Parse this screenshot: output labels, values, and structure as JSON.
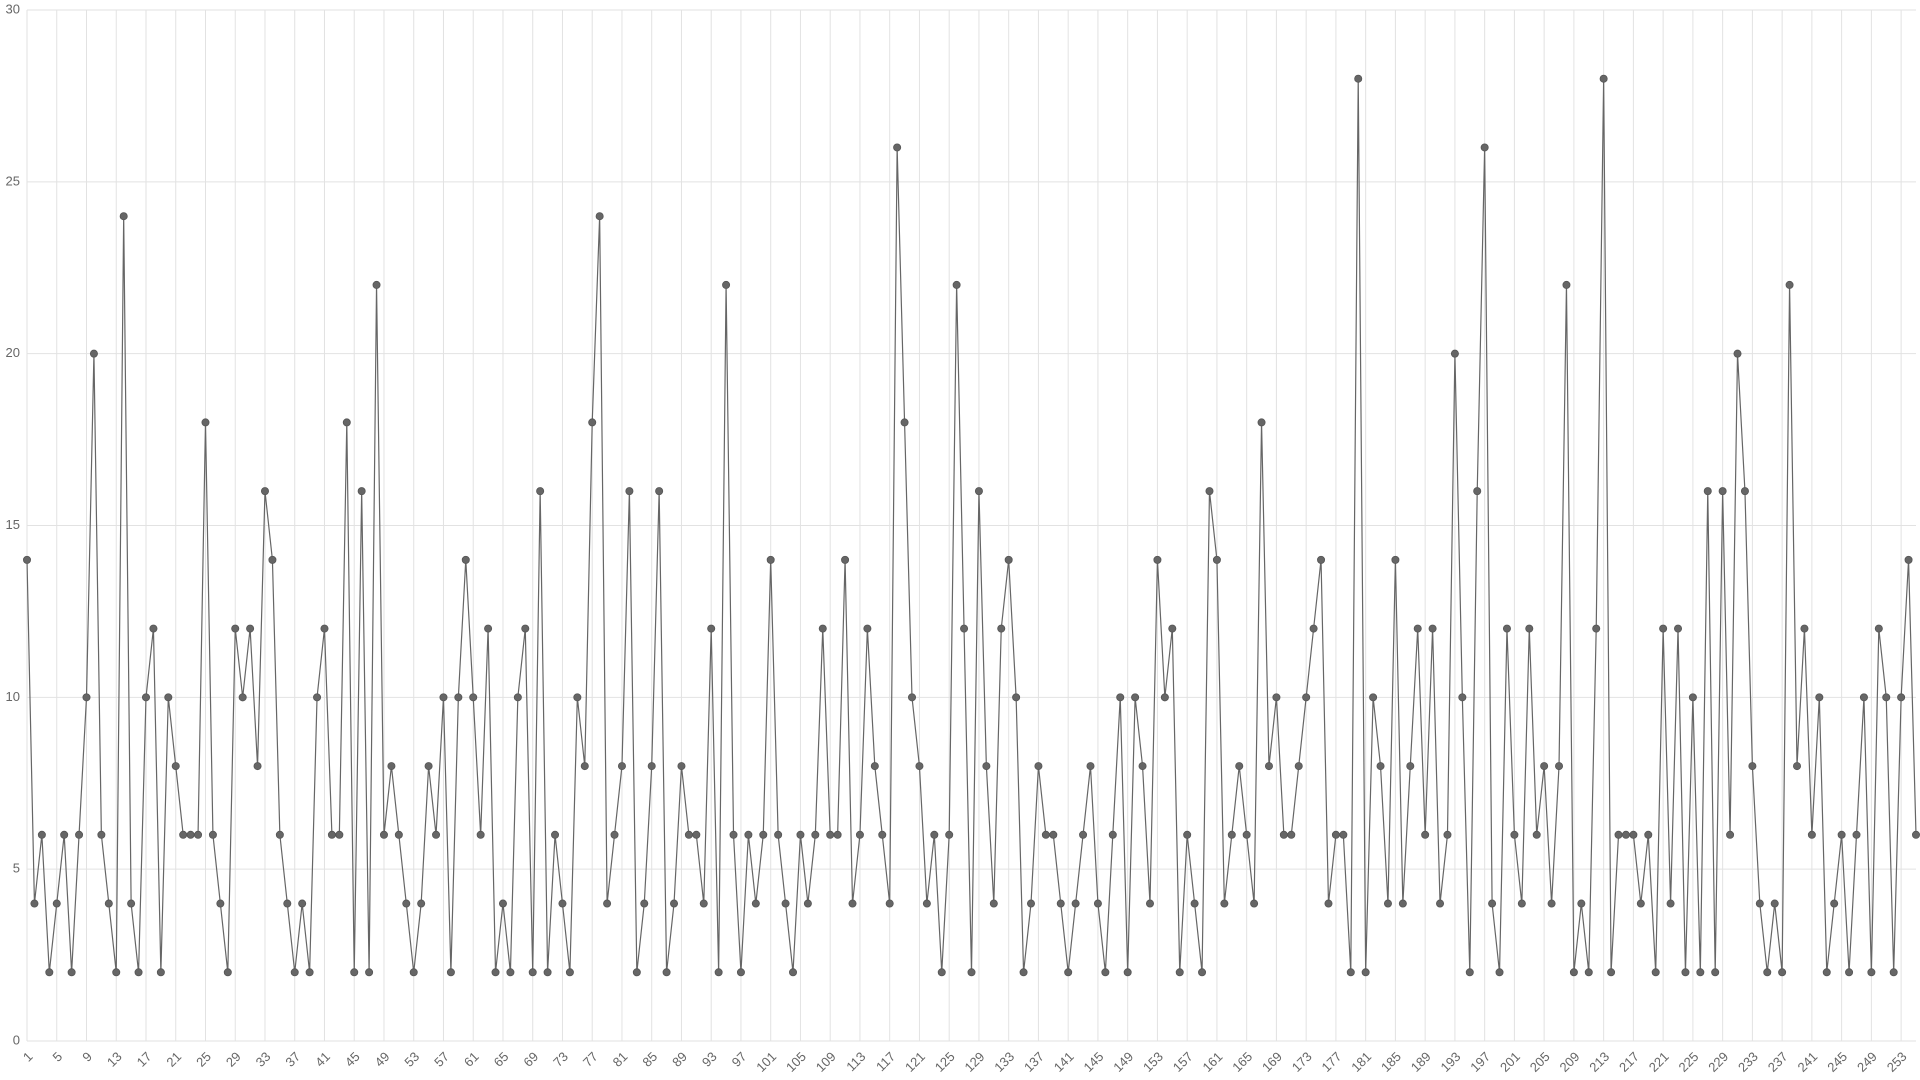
{
  "chart_data": {
    "type": "line",
    "color": "#666666",
    "categories": [
      1,
      null,
      null,
      null,
      5,
      null,
      null,
      null,
      9,
      null,
      null,
      null,
      13,
      null,
      null,
      null,
      17,
      null,
      null,
      null,
      21,
      null,
      null,
      null,
      25,
      null,
      null,
      null,
      29,
      null,
      null,
      null,
      33,
      null,
      null,
      null,
      37,
      null,
      null,
      null,
      41,
      null,
      null,
      null,
      45,
      null,
      null,
      null,
      49,
      null,
      null,
      null,
      53,
      null,
      null,
      null,
      57,
      null,
      null,
      null,
      61,
      null,
      null,
      null,
      65,
      null,
      null,
      null,
      69,
      null,
      null,
      null,
      73,
      null,
      null,
      null,
      77,
      null,
      null,
      null,
      81,
      null,
      null,
      null,
      85,
      null,
      null,
      null,
      89,
      null,
      null,
      null,
      93,
      null,
      null,
      null,
      97,
      null,
      null,
      null,
      101,
      null,
      null,
      null,
      105,
      null,
      null,
      null,
      109,
      null,
      null,
      null,
      113,
      null,
      null,
      null,
      117,
      null,
      null,
      null,
      121,
      null,
      null,
      null,
      125,
      null,
      null,
      null,
      129,
      null,
      null,
      null,
      133,
      null,
      null,
      null,
      137,
      null,
      null,
      null,
      141,
      null,
      null,
      null,
      145,
      null,
      null,
      null,
      149,
      null,
      null,
      null,
      153,
      null,
      null,
      null,
      157,
      null,
      null,
      null,
      161,
      null,
      null,
      null,
      165,
      null,
      null,
      null,
      169,
      null,
      null,
      null,
      173,
      null,
      null,
      null,
      177,
      null,
      null,
      null,
      181,
      null,
      null,
      null,
      185,
      null,
      null,
      null,
      189,
      null,
      null,
      null,
      193,
      null,
      null,
      null,
      197,
      null,
      null,
      null,
      201,
      null,
      null,
      null,
      205,
      null,
      null,
      null,
      209,
      null,
      null,
      null,
      213,
      null,
      null,
      null,
      217,
      null,
      null,
      null,
      221,
      null,
      null,
      null,
      225,
      null,
      null,
      null,
      229,
      null,
      null,
      null,
      233,
      null,
      null,
      null,
      237,
      null,
      null,
      null,
      241,
      null,
      null,
      null,
      245,
      null,
      null,
      null,
      249,
      null,
      null,
      null,
      253,
      null,
      null
    ],
    "values": [
      14,
      4,
      6,
      2,
      4,
      6,
      2,
      6,
      10,
      20,
      6,
      4,
      2,
      24,
      4,
      2,
      10,
      12,
      2,
      10,
      8,
      6,
      6,
      6,
      18,
      6,
      4,
      2,
      12,
      10,
      12,
      8,
      16,
      14,
      6,
      4,
      2,
      4,
      2,
      10,
      12,
      6,
      6,
      18,
      2,
      16,
      2,
      22,
      6,
      8,
      6,
      4,
      2,
      4,
      8,
      6,
      10,
      2,
      10,
      14,
      10,
      6,
      12,
      2,
      4,
      2,
      10,
      12,
      2,
      16,
      2,
      6,
      4,
      2,
      10,
      8,
      18,
      24,
      4,
      6,
      8,
      16,
      2,
      4,
      8,
      16,
      2,
      4,
      8,
      6,
      6,
      4,
      12,
      2,
      22,
      6,
      2,
      6,
      4,
      6,
      14,
      6,
      4,
      2,
      6,
      4,
      6,
      12,
      6,
      6,
      14,
      4,
      6,
      12,
      8,
      6,
      4,
      26,
      18,
      10,
      8,
      4,
      6,
      2,
      6,
      22,
      12,
      2,
      16,
      8,
      4,
      12,
      14,
      10,
      2,
      4,
      8,
      6,
      6,
      4,
      2,
      4,
      6,
      8,
      4,
      2,
      6,
      10,
      2,
      10,
      8,
      4,
      14,
      10,
      12,
      2,
      6,
      4,
      2,
      16,
      14,
      4,
      6,
      8,
      6,
      4,
      18,
      8,
      10,
      6,
      6,
      8,
      10,
      12,
      14,
      4,
      6,
      6,
      2,
      28,
      2,
      10,
      8,
      4,
      14,
      4,
      8,
      12,
      6,
      12,
      4,
      6,
      20,
      10,
      2,
      16,
      26,
      4,
      2,
      12,
      6,
      4,
      12,
      6,
      8,
      4,
      8,
      22,
      2,
      4,
      2,
      12,
      28,
      2,
      6,
      6,
      6,
      4,
      6,
      2,
      12,
      4,
      12,
      2,
      10,
      2,
      16,
      2,
      16,
      6,
      20,
      16,
      8,
      4,
      2,
      4,
      2,
      22,
      8,
      12,
      6,
      10,
      2,
      4,
      6,
      2,
      6,
      10,
      2,
      12,
      10,
      2,
      10,
      14,
      6
    ],
    "ylim": [
      0,
      30
    ],
    "yticks": [
      0,
      5,
      10,
      15,
      20,
      25,
      30
    ],
    "grid": true
  }
}
